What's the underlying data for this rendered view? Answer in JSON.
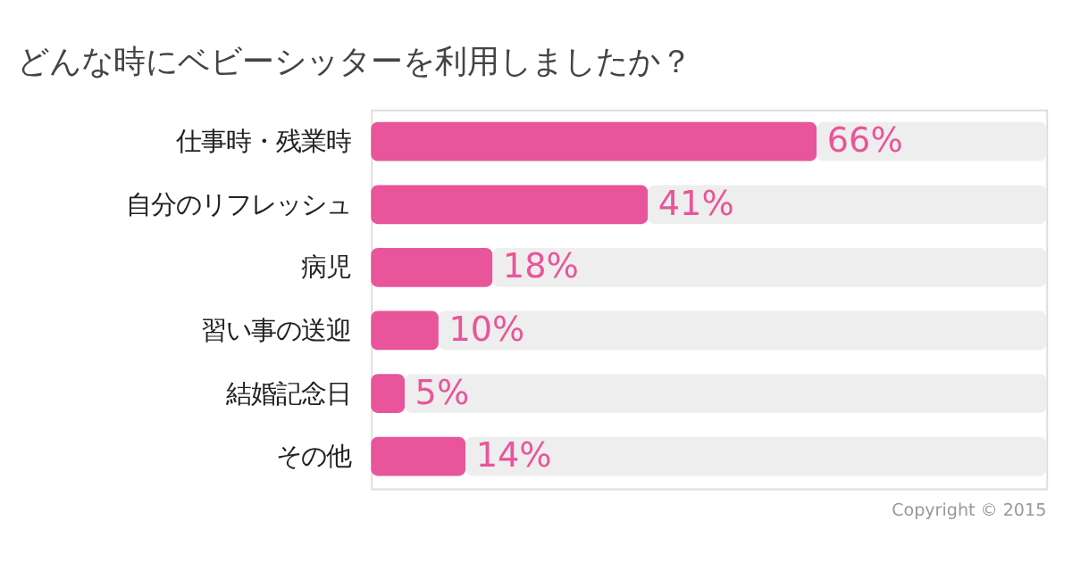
{
  "chart_data": {
    "type": "bar",
    "orientation": "horizontal",
    "stacked": true,
    "title": "どんな時にベビーシッターを利用しましたか？",
    "categories": [
      "仕事時・残業時",
      "自分のリフレッシュ",
      "病児",
      "習い事の送迎",
      "結婚記念日",
      "その他"
    ],
    "series": [
      {
        "color": "#e8559a",
        "values": [
          66,
          41,
          18,
          10,
          5,
          14
        ],
        "value_labels": [
          "66%",
          "41%",
          "18%",
          "10%",
          "5%",
          "14%"
        ]
      },
      {
        "color": "#eeeeee",
        "values": [
          34,
          59,
          82,
          90,
          95,
          86
        ]
      }
    ],
    "grid": false,
    "tick_labels": "y",
    "annotations": [
      "Copyright © 2015"
    ]
  }
}
